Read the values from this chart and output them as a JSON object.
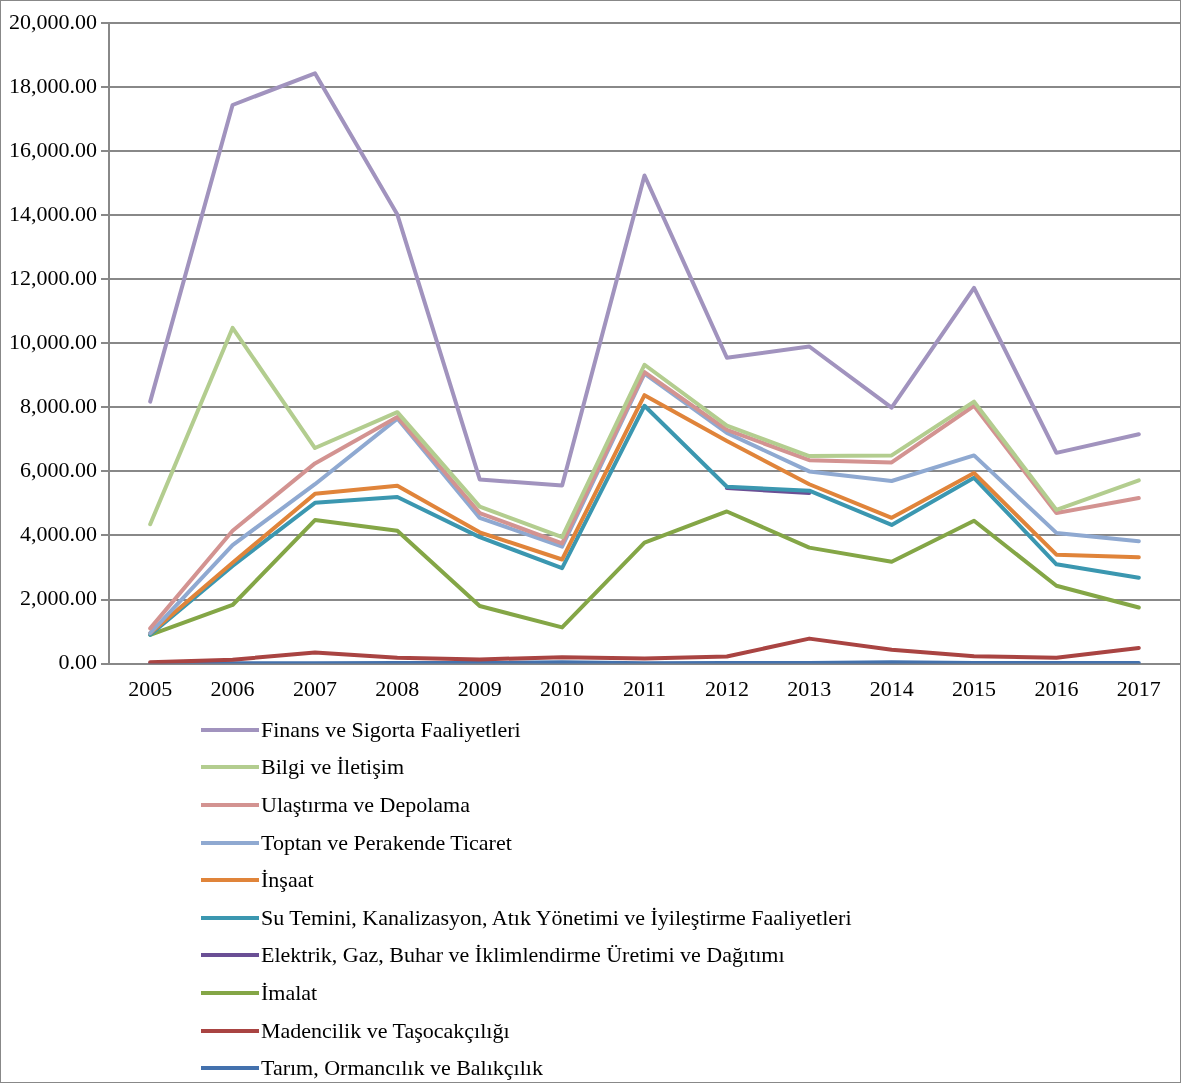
{
  "chart_data": {
    "type": "line",
    "categories": [
      "2005",
      "2006",
      "2007",
      "2008",
      "2009",
      "2010",
      "2011",
      "2012",
      "2013",
      "2014",
      "2015",
      "2016",
      "2017"
    ],
    "ylim": [
      0,
      20000
    ],
    "yticks": [
      {
        "value": 0,
        "label": "0.00"
      },
      {
        "value": 2000,
        "label": "2,000.00"
      },
      {
        "value": 4000,
        "label": "4,000.00"
      },
      {
        "value": 6000,
        "label": "6,000.00"
      },
      {
        "value": 8000,
        "label": "8,000.00"
      },
      {
        "value": 10000,
        "label": "10,000.00"
      },
      {
        "value": 12000,
        "label": "12,000.00"
      },
      {
        "value": 14000,
        "label": "14,000.00"
      },
      {
        "value": 16000,
        "label": "16,000.00"
      },
      {
        "value": 18000,
        "label": "18,000.00"
      },
      {
        "value": 20000,
        "label": "20,000.00"
      }
    ],
    "grid": "y",
    "legend": "bottom",
    "marker": "none",
    "line_style": "solid",
    "series": [
      {
        "name": "Finans ve Sigorta Faaliyetleri",
        "color": "#a193be",
        "values": [
          8180,
          17440,
          18430,
          14020,
          5750,
          5560,
          15240,
          9550,
          9900,
          7990,
          11730,
          6580,
          7160
        ]
      },
      {
        "name": "Bilgi ve İletişim",
        "color": "#b3cd8f",
        "values": [
          4350,
          10480,
          6730,
          7850,
          4900,
          3950,
          9330,
          7430,
          6480,
          6500,
          8180,
          4800,
          5720
        ]
      },
      {
        "name": "Ulaştırma ve Depolama",
        "color": "#d39391",
        "values": [
          1100,
          4150,
          6250,
          7700,
          4700,
          3750,
          9100,
          7300,
          6350,
          6280,
          8050,
          4700,
          5170
        ]
      },
      {
        "name": "Toptan ve Perakende Ticaret",
        "color": "#8fa9d1",
        "values": [
          950,
          3700,
          5600,
          7650,
          4550,
          3650,
          9050,
          7200,
          6000,
          5700,
          6500,
          4080,
          3820
        ]
      },
      {
        "name": "İnşaat",
        "color": "#e0843a",
        "values": [
          950,
          3150,
          5300,
          5550,
          4100,
          3250,
          8380,
          6950,
          5600,
          4550,
          5950,
          3400,
          3320
        ]
      },
      {
        "name": "Su Temini, Kanalizasyon, Atık Yönetimi ve İyileştirme Faaliyetleri",
        "color": "#3b97b0",
        "values": [
          900,
          3050,
          5020,
          5200,
          3950,
          2980,
          8050,
          5520,
          5400,
          4330,
          5800,
          3100,
          2680
        ]
      },
      {
        "name": "Elektrik, Gaz, Buhar ve İklimlendirme Üretimi ve Dağıtımı",
        "color": "#6a4f95",
        "values": [
          null,
          null,
          null,
          null,
          null,
          null,
          null,
          5480,
          5330,
          null,
          null,
          null,
          null
        ]
      },
      {
        "name": "İmalat",
        "color": "#84a646",
        "values": [
          900,
          1830,
          4480,
          4150,
          1800,
          1130,
          3780,
          4750,
          3620,
          3180,
          4460,
          2430,
          1750
        ]
      },
      {
        "name": "Madencilik ve Taşocakçılığı",
        "color": "#a94442",
        "values": [
          40,
          120,
          350,
          180,
          130,
          200,
          160,
          220,
          780,
          430,
          230,
          180,
          490
        ]
      },
      {
        "name": "Tarım, Ormancılık ve Balıkçılık",
        "color": "#4371ad",
        "values": [
          10,
          10,
          10,
          20,
          20,
          40,
          10,
          20,
          20,
          40,
          20,
          20,
          20
        ]
      }
    ]
  }
}
